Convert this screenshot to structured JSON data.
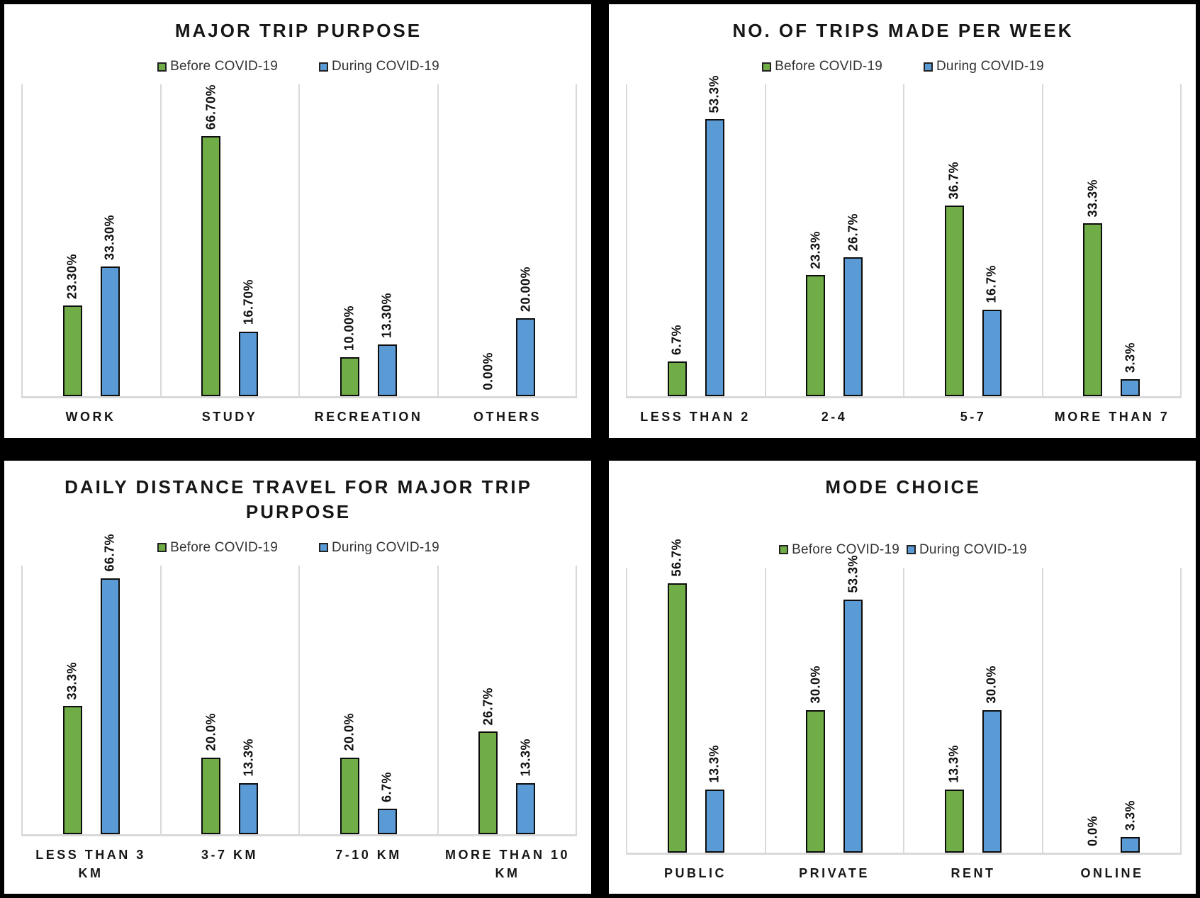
{
  "page": {
    "background": "#000000",
    "panel_background": "#FFFFFF"
  },
  "colors": {
    "before_series": "#70AD47",
    "during_series": "#5B9BD5",
    "bar_border": "#0D0D0D",
    "gridline": "#D9D9D9",
    "text": "#161616"
  },
  "legend": {
    "before_label": "Before COVID-19",
    "during_label": "During COVID-19",
    "position": "top"
  },
  "chart_data": [
    {
      "type": "bar",
      "title": "MAJOR TRIP PURPOSE",
      "categories": [
        "WORK",
        "STUDY",
        "RECREATION",
        "OTHERS"
      ],
      "series": [
        {
          "name": "Before COVID-19",
          "color": "#70AD47",
          "values": [
            23.3,
            66.7,
            10.0,
            0.0
          ],
          "labels": [
            "23.30%",
            "66.70%",
            "10.00%",
            "0.00%"
          ]
        },
        {
          "name": "During COVID-19",
          "color": "#5B9BD5",
          "values": [
            33.3,
            16.7,
            13.3,
            20.0
          ],
          "labels": [
            "33.30%",
            "16.70%",
            "13.30%",
            "20.00%"
          ]
        }
      ],
      "xlabel": "",
      "ylabel": "",
      "ylim": [
        0,
        80
      ],
      "grid": "vertical-category-separators",
      "legend_position": "top",
      "value_label_rotation": -90
    },
    {
      "type": "bar",
      "title": "NO. OF TRIPS MADE PER WEEK",
      "categories": [
        "LESS THAN 2",
        "2-4",
        "5-7",
        "MORE THAN 7"
      ],
      "series": [
        {
          "name": "Before COVID-19",
          "color": "#70AD47",
          "values": [
            6.7,
            23.3,
            36.7,
            33.3
          ],
          "labels": [
            "6.7%",
            "23.3%",
            "36.7%",
            "33.3%"
          ]
        },
        {
          "name": "During COVID-19",
          "color": "#5B9BD5",
          "values": [
            53.3,
            26.7,
            16.7,
            3.3
          ],
          "labels": [
            "53.3%",
            "26.7%",
            "16.7%",
            "3.3%"
          ]
        }
      ],
      "xlabel": "",
      "ylabel": "",
      "ylim": [
        0,
        60
      ],
      "grid": "vertical-category-separators",
      "legend_position": "top",
      "value_label_rotation": -90
    },
    {
      "type": "bar",
      "title": "DAILY DISTANCE TRAVEL FOR MAJOR TRIP PURPOSE",
      "categories": [
        "LESS THAN 3 KM",
        "3-7 KM",
        "7-10 KM",
        "MORE THAN 10 KM"
      ],
      "series": [
        {
          "name": "Before COVID-19",
          "color": "#70AD47",
          "values": [
            33.3,
            20.0,
            20.0,
            26.7
          ],
          "labels": [
            "33.3%",
            "20.0%",
            "20.0%",
            "26.7%"
          ]
        },
        {
          "name": "During COVID-19",
          "color": "#5B9BD5",
          "values": [
            66.7,
            13.3,
            6.7,
            13.3
          ],
          "labels": [
            "66.7%",
            "13.3%",
            "6.7%",
            "13.3%"
          ]
        }
      ],
      "xlabel": "",
      "ylabel": "",
      "ylim": [
        0,
        70
      ],
      "grid": "vertical-category-separators",
      "legend_position": "top",
      "value_label_rotation": -90
    },
    {
      "type": "bar",
      "title": "MODE CHOICE",
      "categories": [
        "PUBLIC",
        "PRIVATE",
        "RENT",
        "ONLINE"
      ],
      "series": [
        {
          "name": "Before COVID-19",
          "color": "#70AD47",
          "values": [
            56.7,
            30.0,
            13.3,
            0.0
          ],
          "labels": [
            "56.7%",
            "30.0%",
            "13.3%",
            "0.0%"
          ]
        },
        {
          "name": "During COVID-19",
          "color": "#5B9BD5",
          "values": [
            13.3,
            53.3,
            30.0,
            3.3
          ],
          "labels": [
            "13.3%",
            "53.3%",
            "30.0%",
            "3.3%"
          ]
        }
      ],
      "xlabel": "",
      "ylabel": "",
      "ylim": [
        0,
        60
      ],
      "grid": "vertical-category-separators",
      "legend_position": "top",
      "value_label_rotation": -90
    }
  ]
}
